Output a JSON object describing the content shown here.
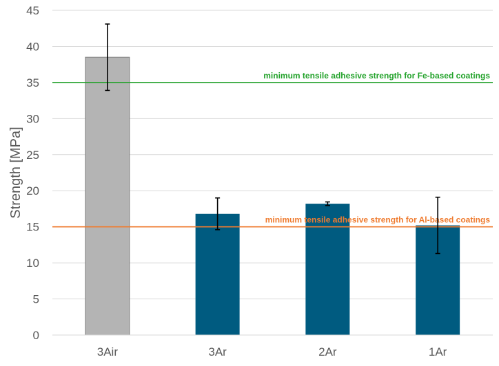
{
  "chart_data": {
    "type": "bar",
    "title": "",
    "xlabel": "",
    "ylabel": "Strength [MPa]",
    "ylim": [
      0,
      45
    ],
    "yticks": [
      0,
      5,
      10,
      15,
      20,
      25,
      30,
      35,
      40,
      45
    ],
    "grid": true,
    "categories": [
      "3Air",
      "3Ar",
      "2Ar",
      "1Ar"
    ],
    "values": [
      38.5,
      16.8,
      18.2,
      15.2
    ],
    "errors": [
      4.6,
      2.2,
      0.25,
      3.9
    ],
    "colors": [
      "#b4b4b4",
      "#005b80",
      "#005b80",
      "#005b80"
    ],
    "reference_lines": [
      {
        "label": "minimum tensile adhesive strength for Fe-based coatings",
        "value": 35,
        "color": "#22a22a"
      },
      {
        "label": "minimum tensile adhesive strength for Al-based coatings",
        "value": 15,
        "color": "#ef7b2f"
      }
    ]
  }
}
